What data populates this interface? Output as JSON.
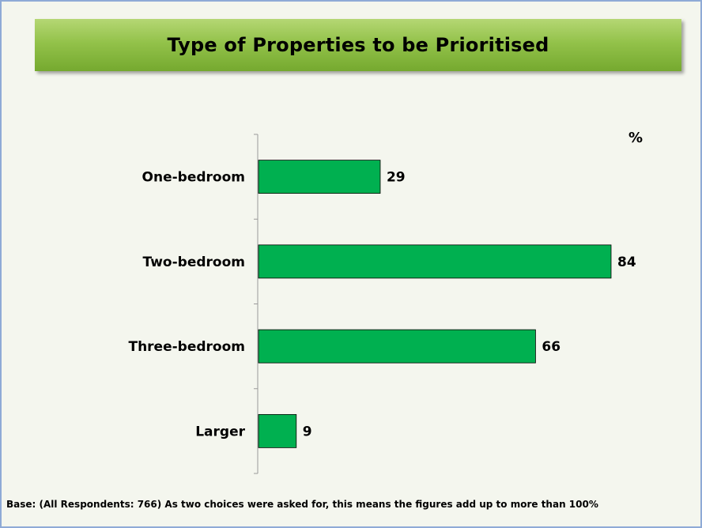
{
  "chart_data": {
    "type": "bar",
    "orientation": "horizontal",
    "title": "Type of Properties to be Prioritised",
    "unit_label": "%",
    "categories": [
      "One-bedroom",
      "Two-bedroom",
      "Three-bedroom",
      "Larger"
    ],
    "values": [
      29,
      84,
      66,
      9
    ],
    "data_labels": [
      "29",
      "84",
      "66",
      "9"
    ],
    "xlim": [
      0,
      84
    ],
    "grid": false,
    "legend": "none",
    "bar_color": "#00b050",
    "bar_border_color": "#000000"
  },
  "footnote": "Base: (All Respondents: 766) As two choices were asked for, this means the figures add up to more than 100%",
  "colors": {
    "background": "#f4f6ee",
    "frame": "#8eaad6",
    "title_banner": "#93c24a"
  }
}
